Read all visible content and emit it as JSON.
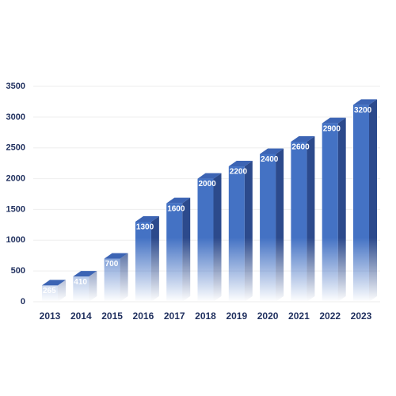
{
  "chart_data": {
    "type": "bar3d",
    "categories": [
      "2013",
      "2014",
      "2015",
      "2016",
      "2017",
      "2018",
      "2019",
      "2020",
      "2021",
      "2022",
      "2023"
    ],
    "values": [
      265,
      410,
      700,
      1300,
      1600,
      2000,
      2200,
      2400,
      2600,
      2900,
      3200
    ],
    "color": "#4472c4",
    "ylim": [
      0,
      3500
    ],
    "yticks": [
      0,
      500,
      1000,
      1500,
      2000,
      2500,
      3000,
      3500
    ],
    "grid": true
  }
}
